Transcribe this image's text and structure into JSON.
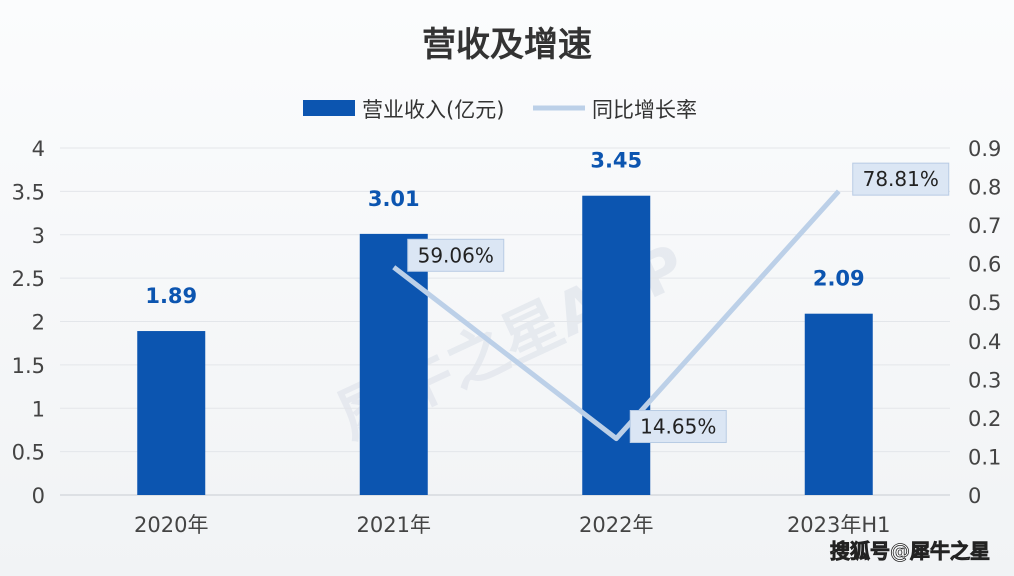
{
  "chart_data": {
    "type": "bar+line",
    "title": "营收及增速",
    "categories": [
      "2020年",
      "2021年",
      "2022年",
      "2023年H1"
    ],
    "series": [
      {
        "name": "营业收入(亿元)",
        "type": "bar",
        "axis": "left",
        "values": [
          1.89,
          3.01,
          3.45,
          2.09
        ],
        "labels": [
          "1.89",
          "3.01",
          "3.45",
          "2.09"
        ],
        "color": "#0c55b0"
      },
      {
        "name": "同比增长率",
        "type": "line",
        "axis": "right",
        "values": [
          null,
          0.5906,
          0.1465,
          0.7881
        ],
        "labels": [
          "",
          "59.06%",
          "14.65%",
          "78.81%"
        ],
        "color": "#bcd0e8"
      }
    ],
    "left_axis": {
      "ylim": [
        0,
        4
      ],
      "ticks": [
        "0",
        "0.5",
        "1",
        "1.5",
        "2",
        "2.5",
        "3",
        "3.5",
        "4"
      ]
    },
    "right_axis": {
      "ylim": [
        0,
        0.9
      ],
      "ticks": [
        "0",
        "0.1",
        "0.2",
        "0.3",
        "0.4",
        "0.5",
        "0.6",
        "0.7",
        "0.8",
        "0.9"
      ]
    },
    "grid": true,
    "legend": "top"
  },
  "watermarks": {
    "center": "犀牛之星APP",
    "corner": "搜狐号@犀牛之星"
  }
}
